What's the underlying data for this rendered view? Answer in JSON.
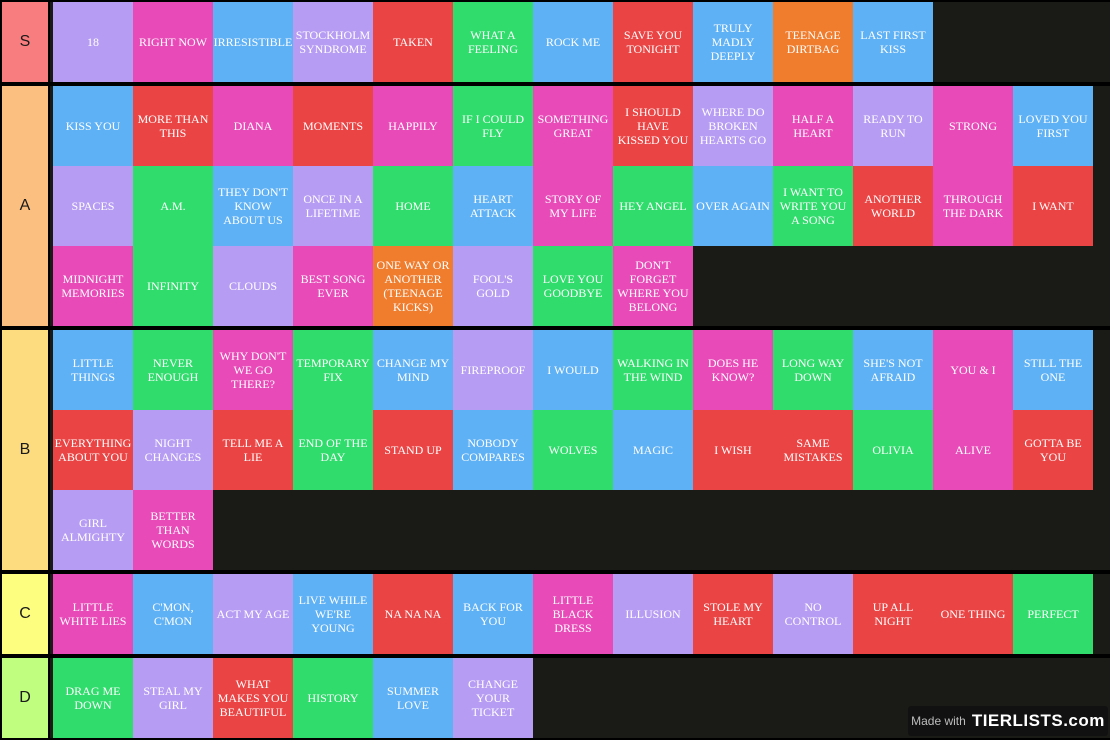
{
  "colors": {
    "purple": "#b79cf4",
    "pink": "#e84ab8",
    "blue": "#5fb1f6",
    "red": "#ea4444",
    "green": "#2fdc6c",
    "orange": "#f07d2e"
  },
  "tiers": [
    {
      "label": "S",
      "color": "#f87d7e",
      "items": [
        {
          "text": "18",
          "color": "purple"
        },
        {
          "text": "RIGHT NOW",
          "color": "pink"
        },
        {
          "text": "IRRESISTIBLE",
          "color": "blue"
        },
        {
          "text": "STOCKHOLM SYNDROME",
          "color": "purple"
        },
        {
          "text": "TAKEN",
          "color": "red"
        },
        {
          "text": "WHAT A FEELING",
          "color": "green"
        },
        {
          "text": "ROCK ME",
          "color": "blue"
        },
        {
          "text": "SAVE YOU TONIGHT",
          "color": "red"
        },
        {
          "text": "TRULY MADLY DEEPLY",
          "color": "blue"
        },
        {
          "text": "TEENAGE DIRTBAG",
          "color": "orange"
        },
        {
          "text": "LAST FIRST KISS",
          "color": "blue"
        }
      ]
    },
    {
      "label": "A",
      "color": "#fbbf7f",
      "items": [
        {
          "text": "KISS YOU",
          "color": "blue"
        },
        {
          "text": "MORE THAN THIS",
          "color": "red"
        },
        {
          "text": "DIANA",
          "color": "pink"
        },
        {
          "text": "MOMENTS",
          "color": "red"
        },
        {
          "text": "HAPPILY",
          "color": "pink"
        },
        {
          "text": "IF I COULD FLY",
          "color": "green"
        },
        {
          "text": "SOMETHING GREAT",
          "color": "pink"
        },
        {
          "text": "I SHOULD HAVE KISSED YOU",
          "color": "red"
        },
        {
          "text": "WHERE DO BROKEN HEARTS GO",
          "color": "purple"
        },
        {
          "text": "HALF A HEART",
          "color": "pink"
        },
        {
          "text": "READY TO RUN",
          "color": "purple"
        },
        {
          "text": "STRONG",
          "color": "pink"
        },
        {
          "text": "LOVED YOU FIRST",
          "color": "blue"
        },
        {
          "text": "SPACES",
          "color": "purple"
        },
        {
          "text": "A.M.",
          "color": "green"
        },
        {
          "text": "THEY DON'T KNOW ABOUT US",
          "color": "blue"
        },
        {
          "text": "ONCE IN A LIFETIME",
          "color": "purple"
        },
        {
          "text": "HOME",
          "color": "green"
        },
        {
          "text": "HEART ATTACK",
          "color": "blue"
        },
        {
          "text": "STORY OF MY LIFE",
          "color": "pink"
        },
        {
          "text": "HEY ANGEL",
          "color": "green"
        },
        {
          "text": "OVER AGAIN",
          "color": "blue"
        },
        {
          "text": "I WANT TO WRITE YOU A SONG",
          "color": "green"
        },
        {
          "text": "ANOTHER WORLD",
          "color": "red"
        },
        {
          "text": "THROUGH THE DARK",
          "color": "pink"
        },
        {
          "text": "I WANT",
          "color": "red"
        },
        {
          "text": "MIDNIGHT MEMORIES",
          "color": "pink"
        },
        {
          "text": "INFINITY",
          "color": "green"
        },
        {
          "text": "CLOUDS",
          "color": "purple"
        },
        {
          "text": "BEST SONG EVER",
          "color": "pink"
        },
        {
          "text": "ONE WAY OR ANOTHER (TEENAGE KICKS)",
          "color": "orange"
        },
        {
          "text": "FOOL'S GOLD",
          "color": "purple"
        },
        {
          "text": "LOVE YOU GOODBYE",
          "color": "green"
        },
        {
          "text": "DON'T FORGET WHERE YOU BELONG",
          "color": "pink"
        }
      ]
    },
    {
      "label": "B",
      "color": "#fddc80",
      "items": [
        {
          "text": "LITTLE THINGS",
          "color": "blue"
        },
        {
          "text": "NEVER ENOUGH",
          "color": "green"
        },
        {
          "text": "WHY DON'T WE GO THERE?",
          "color": "pink"
        },
        {
          "text": "TEMPORARY FIX",
          "color": "green"
        },
        {
          "text": "CHANGE MY MIND",
          "color": "blue"
        },
        {
          "text": "FIREPROOF",
          "color": "purple"
        },
        {
          "text": "I WOULD",
          "color": "blue"
        },
        {
          "text": "WALKING IN THE WIND",
          "color": "green"
        },
        {
          "text": "DOES HE KNOW?",
          "color": "pink"
        },
        {
          "text": "LONG WAY DOWN",
          "color": "green"
        },
        {
          "text": "SHE'S NOT AFRAID",
          "color": "blue"
        },
        {
          "text": "YOU & I",
          "color": "pink"
        },
        {
          "text": "STILL THE ONE",
          "color": "blue"
        },
        {
          "text": "EVERYTHING ABOUT YOU",
          "color": "red"
        },
        {
          "text": "NIGHT CHANGES",
          "color": "purple"
        },
        {
          "text": "TELL ME A LIE",
          "color": "red"
        },
        {
          "text": "END OF THE DAY",
          "color": "green"
        },
        {
          "text": "STAND UP",
          "color": "red"
        },
        {
          "text": "NOBODY COMPARES",
          "color": "blue"
        },
        {
          "text": "WOLVES",
          "color": "green"
        },
        {
          "text": "MAGIC",
          "color": "blue"
        },
        {
          "text": "I WISH",
          "color": "red"
        },
        {
          "text": "SAME MISTAKES",
          "color": "red"
        },
        {
          "text": "OLIVIA",
          "color": "green"
        },
        {
          "text": "ALIVE",
          "color": "pink"
        },
        {
          "text": "GOTTA BE YOU",
          "color": "red"
        },
        {
          "text": "GIRL ALMIGHTY",
          "color": "purple"
        },
        {
          "text": "BETTER THAN WORDS",
          "color": "pink"
        }
      ]
    },
    {
      "label": "C",
      "color": "#fdfd80",
      "items": [
        {
          "text": "LITTLE WHITE LIES",
          "color": "pink"
        },
        {
          "text": "C'MON, C'MON",
          "color": "blue"
        },
        {
          "text": "ACT MY AGE",
          "color": "purple"
        },
        {
          "text": "LIVE WHILE WE'RE YOUNG",
          "color": "blue"
        },
        {
          "text": "NA NA NA",
          "color": "red"
        },
        {
          "text": "BACK FOR YOU",
          "color": "blue"
        },
        {
          "text": "LITTLE BLACK DRESS",
          "color": "pink"
        },
        {
          "text": "ILLUSION",
          "color": "purple"
        },
        {
          "text": "STOLE MY HEART",
          "color": "red"
        },
        {
          "text": "NO CONTROL",
          "color": "purple"
        },
        {
          "text": "UP ALL NIGHT",
          "color": "red"
        },
        {
          "text": "ONE THING",
          "color": "red"
        },
        {
          "text": "PERFECT",
          "color": "green"
        }
      ]
    },
    {
      "label": "D",
      "color": "#bffe7f",
      "items": [
        {
          "text": "DRAG ME DOWN",
          "color": "green"
        },
        {
          "text": "STEAL MY GIRL",
          "color": "purple"
        },
        {
          "text": "WHAT MAKES YOU BEAUTIFUL",
          "color": "red"
        },
        {
          "text": "HISTORY",
          "color": "green"
        },
        {
          "text": "SUMMER LOVE",
          "color": "blue"
        },
        {
          "text": "CHANGE YOUR TICKET",
          "color": "purple"
        }
      ]
    }
  ],
  "watermark": {
    "made_with": "Made with",
    "logo": "TIERLISTS.com"
  }
}
